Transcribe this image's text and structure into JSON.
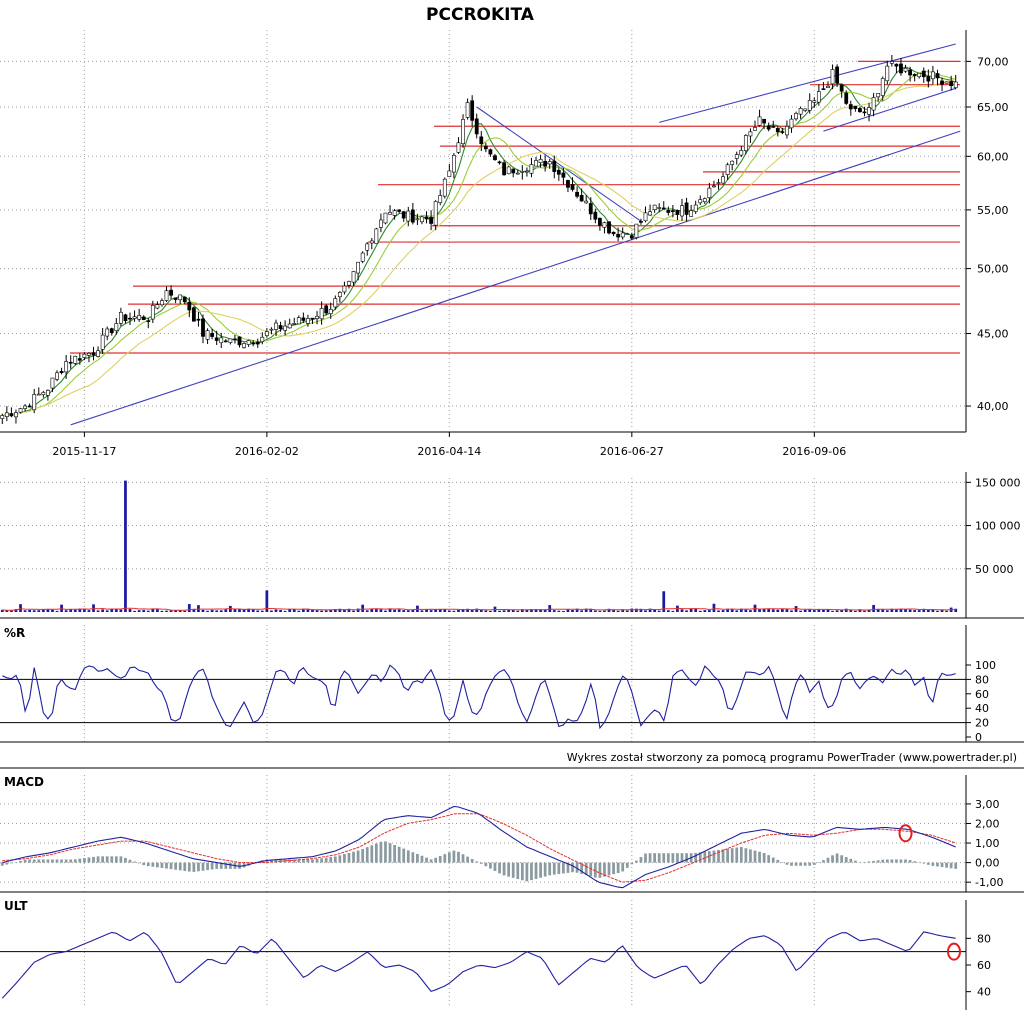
{
  "title": "PCCROKITA",
  "footer_note": "Wykres został stworzony za pomocą programu PowerTrader (www.powertrader.pl)",
  "colors": {
    "candle_up": "#ffffff",
    "candle_down": "#000000",
    "ma_short": "#2d8a2d",
    "ma_mid": "#9acd32",
    "ma_long": "#e0d060",
    "trend": "#4040c0",
    "level": "#e03030",
    "series_blue": "#2020a0",
    "signal_red": "#e03030",
    "histogram": "#8a9aa0",
    "grid": "#a0a0a0",
    "mark": "#e02020"
  },
  "chart_data": [
    {
      "type": "candlestick",
      "title": "PCCROKITA",
      "x_tick_labels": [
        "2015-11-17",
        "2016-02-02",
        "2016-04-14",
        "2016-06-27",
        "2016-09-06"
      ],
      "x_ticks_at_bar": [
        18,
        58,
        98,
        138,
        178
      ],
      "bar_count": 210,
      "y_tick_labels": [
        "70,00",
        "65,00",
        "60,00",
        "55,00",
        "50,00",
        "45,00",
        "40,00"
      ],
      "y_ticks": [
        70,
        65,
        60,
        55,
        50,
        45,
        40
      ],
      "ylim": [
        38.6,
        72.0
      ],
      "y_scale": "log",
      "close_path": [
        [
          0,
          39.4
        ],
        [
          5,
          40.0
        ],
        [
          10,
          41.2
        ],
        [
          14,
          43.0
        ],
        [
          20,
          43.7
        ],
        [
          26,
          46.2
        ],
        [
          32,
          46.2
        ],
        [
          36,
          48.2
        ],
        [
          40,
          47.5
        ],
        [
          44,
          45.0
        ],
        [
          50,
          44.4
        ],
        [
          56,
          44.6
        ],
        [
          60,
          45.4
        ],
        [
          66,
          46.0
        ],
        [
          72,
          47.0
        ],
        [
          76,
          48.6
        ],
        [
          80,
          52.0
        ],
        [
          84,
          55.0
        ],
        [
          88,
          54.5
        ],
        [
          94,
          54.2
        ],
        [
          98,
          58.5
        ],
        [
          102,
          65.0
        ],
        [
          106,
          60.5
        ],
        [
          110,
          58.5
        ],
        [
          114,
          59.0
        ],
        [
          120,
          59.5
        ],
        [
          126,
          56.5
        ],
        [
          130,
          54.5
        ],
        [
          134,
          53.0
        ],
        [
          138,
          53.0
        ],
        [
          142,
          55.0
        ],
        [
          146,
          55.0
        ],
        [
          150,
          55.0
        ],
        [
          154,
          56.5
        ],
        [
          158,
          58.0
        ],
        [
          162,
          61.0
        ],
        [
          166,
          63.5
        ],
        [
          170,
          62.0
        ],
        [
          174,
          64.0
        ],
        [
          178,
          65.5
        ],
        [
          182,
          68.5
        ],
        [
          186,
          64.5
        ],
        [
          190,
          64.5
        ],
        [
          194,
          69.5
        ],
        [
          198,
          69.0
        ],
        [
          202,
          68.5
        ],
        [
          206,
          68.0
        ],
        [
          209,
          67.5
        ]
      ],
      "horizontal_levels": [
        43.6,
        47.2,
        48.6,
        52.2,
        53.6,
        57.3,
        58.5,
        61.0,
        63.0,
        67.4,
        70.0
      ],
      "trend_lines": [
        {
          "from": [
            15,
            38.8
          ],
          "to": [
            210,
            62.5
          ]
        },
        {
          "from": [
            104,
            65.0
          ],
          "to": [
            140,
            54.0
          ]
        },
        {
          "from": [
            144,
            63.4
          ],
          "to": [
            209,
            72.0
          ]
        },
        {
          "from": [
            180,
            62.5
          ],
          "to": [
            209,
            67.0
          ]
        }
      ],
      "moving_averages": [
        "short",
        "mid",
        "long"
      ]
    },
    {
      "type": "bar",
      "title": "",
      "y_tick_labels": [
        "150 000",
        "100 000",
        "50 000"
      ],
      "y_ticks": [
        150000,
        100000,
        50000
      ],
      "ylim": [
        0,
        155000
      ],
      "base_volume_range": [
        1200,
        4000
      ],
      "spikes": [
        {
          "bar": 27,
          "value": 152000
        },
        {
          "bar": 58,
          "value": 25000
        },
        {
          "bar": 145,
          "value": 24000
        }
      ],
      "average_line": "red"
    },
    {
      "type": "line",
      "title": "%R",
      "y_tick_labels": [
        "100",
        "80",
        "60",
        "40",
        "20",
        "0"
      ],
      "y_ticks": [
        100,
        80,
        60,
        40,
        20,
        0
      ],
      "ylim": [
        0,
        100
      ],
      "reference_lines": [
        80,
        20
      ],
      "values": [
        85,
        80,
        88,
        25,
        100,
        35,
        20,
        85,
        70,
        65,
        95,
        100,
        90,
        95,
        85,
        80,
        100,
        92,
        90,
        70,
        60,
        20,
        25,
        65,
        90,
        95,
        55,
        30,
        10,
        30,
        50,
        20,
        25,
        60,
        95,
        90,
        70,
        100,
        85,
        80,
        75,
        30,
        95,
        85,
        60,
        75,
        90,
        75,
        100,
        90,
        60,
        80,
        75,
        95,
        70,
        20,
        30,
        80,
        35,
        30,
        65,
        85,
        95,
        80,
        40,
        20,
        55,
        85,
        50,
        10,
        25,
        20,
        40,
        80,
        10,
        30,
        65,
        90,
        60,
        15,
        30,
        40,
        20,
        85,
        95,
        80,
        70,
        100,
        85,
        75,
        30,
        55,
        90,
        90,
        85,
        100,
        60,
        20,
        70,
        90,
        60,
        80,
        40,
        45,
        85,
        90,
        65,
        80,
        85,
        75,
        95,
        85,
        95,
        70,
        85,
        40,
        90,
        85,
        88
      ]
    },
    {
      "type": "line",
      "title": "MACD",
      "y_tick_labels": [
        "3,00",
        "2,00",
        "1,00",
        "0,00",
        "-1,00"
      ],
      "y_ticks": [
        3,
        2,
        1,
        0,
        -1
      ],
      "ylim": [
        -1.4,
        3.2
      ],
      "series": [
        {
          "name": "",
          "color": "blue",
          "values": [
            0.0,
            0.3,
            0.5,
            0.8,
            1.1,
            1.3,
            1.0,
            0.6,
            0.2,
            0.0,
            -0.2,
            0.1,
            0.2,
            0.3,
            0.6,
            1.2,
            2.2,
            2.4,
            2.3,
            2.9,
            2.5,
            1.6,
            0.8,
            0.3,
            -0.2,
            -1.0,
            -1.3,
            -0.6,
            -0.2,
            0.3,
            0.9,
            1.5,
            1.7,
            1.4,
            1.3,
            1.8,
            1.7,
            1.8,
            1.7,
            1.3,
            0.8
          ]
        },
        {
          "name": "",
          "color": "red",
          "values": [
            0.1,
            0.2,
            0.4,
            0.7,
            0.9,
            1.1,
            1.1,
            0.8,
            0.5,
            0.2,
            0.0,
            0.0,
            0.1,
            0.2,
            0.4,
            0.8,
            1.5,
            2.0,
            2.2,
            2.5,
            2.5,
            2.0,
            1.4,
            0.7,
            0.1,
            -0.5,
            -1.0,
            -0.9,
            -0.5,
            0.0,
            0.5,
            1.0,
            1.4,
            1.5,
            1.4,
            1.5,
            1.7,
            1.7,
            1.6,
            1.4,
            1.0
          ]
        }
      ],
      "histogram": true
    },
    {
      "type": "line",
      "title": "ULT",
      "y_tick_labels": [
        "80",
        "60",
        "40"
      ],
      "y_ticks": [
        80,
        60,
        40
      ],
      "ylim": [
        30,
        90
      ],
      "reference_lines": [
        70
      ],
      "values": [
        35,
        48,
        62,
        68,
        70,
        75,
        80,
        85,
        78,
        85,
        70,
        45,
        55,
        65,
        60,
        75,
        68,
        80,
        65,
        50,
        60,
        55,
        62,
        70,
        58,
        60,
        55,
        40,
        45,
        55,
        60,
        58,
        62,
        70,
        65,
        45,
        55,
        65,
        62,
        75,
        58,
        50,
        55,
        60,
        45,
        60,
        72,
        80,
        82,
        75,
        55,
        68,
        80,
        85,
        78,
        80,
        75,
        70,
        85,
        82,
        80
      ]
    }
  ],
  "markers": [
    {
      "panel": "MACD",
      "bar": 198
    },
    {
      "panel": "ULT",
      "bar": 208
    }
  ]
}
